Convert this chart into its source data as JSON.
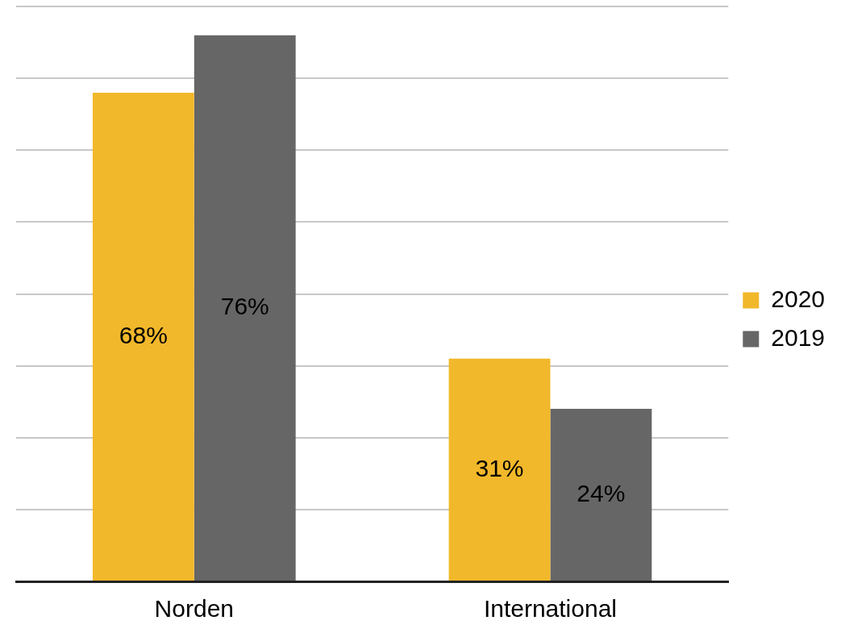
{
  "chart_data": {
    "type": "bar",
    "categories": [
      "Norden",
      "International"
    ],
    "series": [
      {
        "name": "2020",
        "color": "#f2b82b",
        "values": [
          68,
          31
        ],
        "value_labels": [
          "68%",
          "31%"
        ]
      },
      {
        "name": "2019",
        "color": "#666666",
        "values": [
          76,
          24
        ],
        "value_labels": [
          "76%",
          "24%"
        ]
      }
    ],
    "ylim": [
      0,
      80
    ],
    "yticks": [
      {
        "value": 0,
        "label": null
      },
      {
        "value": 10,
        "label": null
      },
      {
        "value": 20,
        "label": null
      },
      {
        "value": 30,
        "label": null
      },
      {
        "value": 40,
        "label": null
      },
      {
        "value": 50,
        "label": null
      },
      {
        "value": 60,
        "label": null
      },
      {
        "value": 70,
        "label": null
      },
      {
        "value": 80,
        "label": null
      }
    ],
    "tick_labels": "x",
    "grid": "y",
    "legend": "right"
  }
}
